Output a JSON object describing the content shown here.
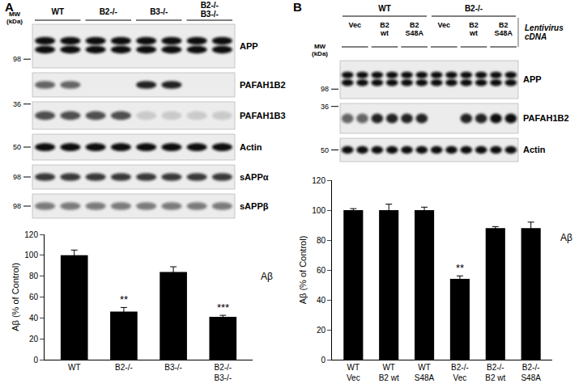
{
  "chart_data": [
    {
      "type": "bar",
      "categories": [
        "WT",
        "B2-/-",
        "B3-/-",
        "B2-/-\nB3-/-"
      ],
      "values": [
        100,
        46,
        84,
        41
      ],
      "errors": [
        5,
        4,
        5,
        1.5
      ],
      "color": "#000000",
      "y_label": "Aβ (% of Control)",
      "ylim": [
        0,
        120
      ],
      "yticks": [
        0,
        20,
        40,
        60,
        80,
        100,
        120
      ],
      "grid": false,
      "annotations": [
        {
          "category": "B2-/-",
          "text": "**"
        },
        {
          "category": "B2-/-\nB3-/-",
          "text": "***"
        },
        {
          "text": "Aβ"
        }
      ]
    },
    {
      "type": "bar",
      "categories": [
        "WT\nVec",
        "WT\nB2 wt",
        "WT\nS48A",
        "B2-/-\nVec",
        "B2-/-\nB2 wt",
        "B2-/-\nS48A"
      ],
      "values": [
        100,
        100,
        100,
        54,
        88,
        88
      ],
      "errors": [
        1,
        4,
        2,
        2,
        1,
        4
      ],
      "color": "#000000",
      "y_label": "Aβ (% of Control)",
      "ylim": [
        0,
        120
      ],
      "yticks": [
        0,
        20,
        40,
        60,
        80,
        100,
        120
      ],
      "grid": false,
      "annotations": [
        {
          "category": "B2-/-\nVec",
          "text": "**"
        },
        {
          "text": "Aβ"
        }
      ]
    }
  ],
  "panels": [
    {
      "letter": "A",
      "mw_label": "MW\n(kDa)",
      "groups": [
        {
          "label": "WT",
          "lanes": 2
        },
        {
          "label": "B2-/-",
          "lanes": 2
        },
        {
          "label": "B3-/-",
          "lanes": 2
        },
        {
          "label": "B2-/-\nB3-/-",
          "lanes": 2
        }
      ],
      "rows": [
        {
          "label": "APP",
          "marker": 98,
          "bands": [
            1,
            1,
            1,
            1,
            1,
            1,
            1,
            1
          ]
        },
        {
          "label": "PAFAH1B2",
          "marker": null,
          "bands": [
            0.6,
            0.6,
            0,
            0,
            0.9,
            0.9,
            0,
            0
          ]
        },
        {
          "label": "PAFAH1B3",
          "marker": 36,
          "bands": [
            0.7,
            0.7,
            0.7,
            0.7,
            0.15,
            0.15,
            0.15,
            0.15
          ]
        },
        {
          "label": "Actin",
          "marker": 50,
          "bands": [
            1,
            1,
            1,
            1,
            1,
            1,
            1,
            1
          ]
        },
        {
          "label": "sAPPα",
          "marker": 98,
          "bands": [
            0.8,
            0.8,
            0.8,
            0.8,
            0.8,
            0.8,
            0.8,
            0.8
          ]
        },
        {
          "label": "sAPPβ",
          "marker": 98,
          "bands": [
            0.5,
            0.5,
            0.5,
            0.5,
            0.5,
            0.5,
            0.5,
            0.5
          ]
        }
      ]
    },
    {
      "letter": "B",
      "mw_label": "MW\n(kDa)",
      "groups": [
        {
          "label": "WT",
          "subgroups": [
            "Vec",
            "B2\nwt",
            "B2\nS48A"
          ]
        },
        {
          "label": "B2-/-",
          "subgroups": [
            "Vec",
            "B2\nwt",
            "B2\nS48A"
          ]
        }
      ],
      "lanes_per_subgroup": 2,
      "vector_label": "Lentivirus\ncDNA",
      "rows": [
        {
          "label": "APP",
          "marker": 98,
          "bands": [
            1,
            1,
            1,
            1,
            1,
            1,
            1,
            1,
            1,
            1,
            1,
            1
          ]
        },
        {
          "label": "PAFAH1B2",
          "marker": 36,
          "bands": [
            0.6,
            0.6,
            0.9,
            0.9,
            0.9,
            0.9,
            0,
            0,
            0.9,
            0.9,
            1,
            1
          ]
        },
        {
          "label": "Actin",
          "marker": 50,
          "bands": [
            1,
            1,
            1,
            1,
            1,
            1,
            1,
            1,
            1,
            1,
            1,
            1
          ]
        }
      ]
    }
  ]
}
